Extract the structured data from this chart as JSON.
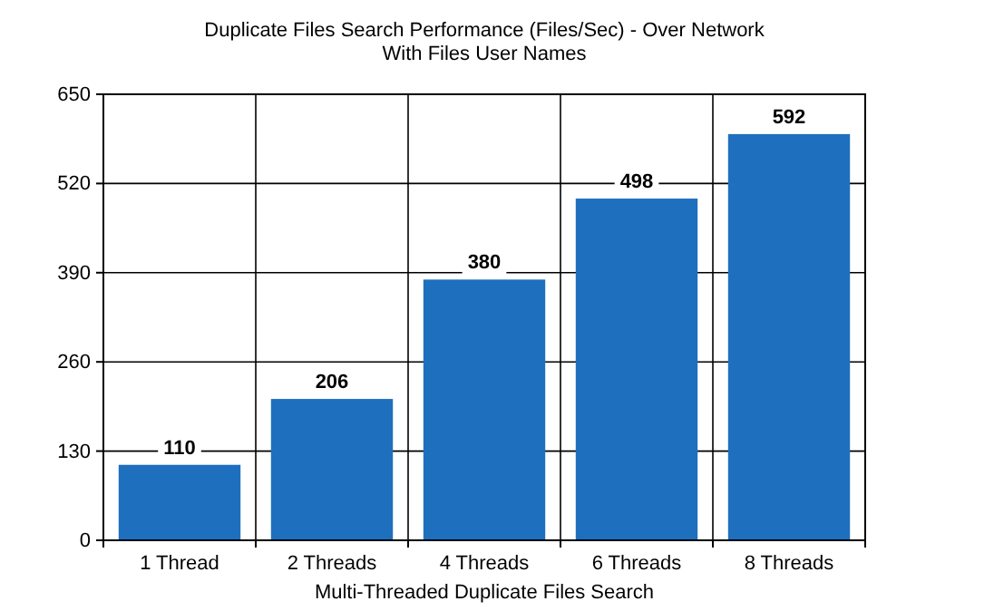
{
  "chart_data": {
    "type": "bar",
    "title": "Duplicate Files Search Performance (Files/Sec) - Over Network With Files User Names",
    "xlabel": "Multi-Threaded Duplicate Files Search",
    "categories": [
      "1 Thread",
      "2 Threads",
      "4 Threads",
      "6 Threads",
      "8 Threads"
    ],
    "values": [
      110,
      206,
      380,
      498,
      592
    ],
    "color": "#1f6fbf",
    "ylim": [
      0,
      650
    ],
    "yticks": [
      0,
      130,
      260,
      390,
      520,
      650
    ],
    "grid": true,
    "data_labels": true
  }
}
